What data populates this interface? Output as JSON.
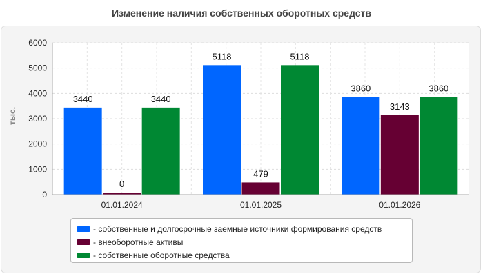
{
  "chart_data": {
    "type": "bar",
    "title": "Изменение наличия собственных оборотных средств",
    "ylabel": "тыс.",
    "categories": [
      "01.01.2024",
      "01.01.2025",
      "01.01.2026"
    ],
    "ylim": [
      0,
      6000
    ],
    "yticks": [
      0,
      1000,
      2000,
      3000,
      4000,
      5000,
      6000
    ],
    "grid": true,
    "legend_position": "bottom",
    "series": [
      {
        "name": "- собственные и долгосрочные заемные источники формирования средств",
        "color": "#0066ff",
        "values": [
          3440,
          5118,
          3860
        ]
      },
      {
        "name": "- внеоборотные активы",
        "color": "#660033",
        "values": [
          0,
          479,
          3143
        ]
      },
      {
        "name": "- собственные оборотные средства",
        "color": "#008833",
        "values": [
          3440,
          5118,
          3860
        ]
      }
    ]
  }
}
